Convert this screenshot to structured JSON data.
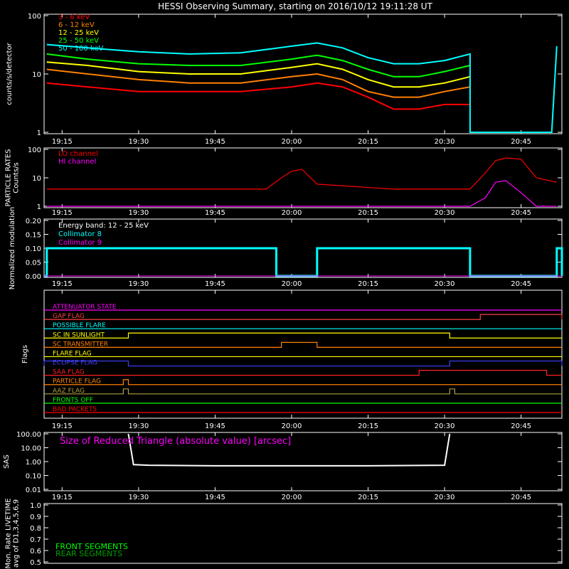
{
  "title": "HESSI Observing Summary, starting on 2016/10/12 19:11:28 UT",
  "time_axis": {
    "start": "19:11:28",
    "end": "20:53",
    "ticks": [
      "19:15",
      "19:30",
      "19:45",
      "20:00",
      "20:15",
      "20:30",
      "20:45"
    ]
  },
  "colors": {
    "3-6": "#ff0000",
    "6-12": "#ff8000",
    "12-25": "#ffff00",
    "25-50": "#00ff00",
    "50-100": "#00ffff",
    "magenta": "#ff00ff",
    "lo": "#ff0000",
    "hi": "#ff00ff",
    "white": "#ffffff",
    "green": "#00ff00",
    "dkgreen": "#00a000",
    "blue": "#0000ff",
    "olive": "#b0a040"
  },
  "chart_data": [
    {
      "type": "line",
      "ylabel": "counts/s/detector",
      "yscale": "log",
      "ylim": [
        1,
        100
      ],
      "yticks": [
        "1",
        "10",
        "100"
      ],
      "legend": [
        "3 - 6 keV",
        "6 - 12 keV",
        "12 - 25 keV",
        "25 - 50 keV",
        "50 - 100 keV"
      ],
      "x": [
        "19:12",
        "19:20",
        "19:30",
        "19:40",
        "19:50",
        "20:00",
        "20:05",
        "20:10",
        "20:15",
        "20:20",
        "20:25",
        "20:30",
        "20:35",
        "20:35",
        "20:51",
        "20:52"
      ],
      "series": [
        {
          "name": "3 - 6 keV",
          "values": [
            7,
            6,
            5,
            5,
            5,
            6,
            7,
            6,
            4,
            2.5,
            2.5,
            3,
            3,
            null,
            null,
            null
          ]
        },
        {
          "name": "6 - 12 keV",
          "values": [
            12,
            10,
            8,
            7,
            7,
            9,
            10,
            8,
            5,
            4,
            4,
            5,
            6,
            null,
            null,
            null
          ]
        },
        {
          "name": "12 - 25 keV",
          "values": [
            16,
            14,
            11,
            10,
            10,
            13,
            15,
            12,
            8,
            6,
            6,
            7,
            9,
            null,
            null,
            null
          ]
        },
        {
          "name": "25 - 50 keV",
          "values": [
            22,
            18,
            15,
            14,
            14,
            18,
            21,
            17,
            12,
            9,
            9,
            11,
            14,
            null,
            null,
            null
          ]
        },
        {
          "name": "50 - 100 keV",
          "values": [
            32,
            28,
            24,
            22,
            23,
            30,
            34,
            28,
            19,
            15,
            15,
            17,
            22,
            1,
            1,
            30
          ]
        }
      ]
    },
    {
      "type": "line",
      "ylabel": "PARTICLE RATES Counts/s",
      "yscale": "log",
      "ylim": [
        1,
        100
      ],
      "yticks": [
        "1",
        "10",
        "100"
      ],
      "legend": [
        "LO channel",
        "HI channel"
      ],
      "x": [
        "19:12",
        "19:25",
        "19:40",
        "19:55",
        "19:58",
        "20:00",
        "20:02",
        "20:05",
        "20:20",
        "20:35",
        "20:38",
        "20:40",
        "20:42",
        "20:45",
        "20:48",
        "20:52"
      ],
      "series": [
        {
          "name": "LO channel",
          "values": [
            4,
            4,
            4,
            4,
            10,
            17,
            20,
            6,
            4,
            4,
            15,
            40,
            50,
            45,
            10,
            7
          ]
        },
        {
          "name": "HI channel",
          "values": [
            1,
            1,
            1,
            1,
            1,
            1,
            1,
            1,
            1,
            1,
            2,
            7,
            8,
            3,
            1,
            1
          ]
        }
      ]
    },
    {
      "type": "line",
      "ylabel": "Normalized modulation",
      "ylim": [
        0,
        0.2
      ],
      "yticks": [
        "0.00",
        "0.05",
        "0.10",
        "0.15",
        "0.20"
      ],
      "legend_header": "Energy band: 12 - 25 keV",
      "legend": [
        "Collimator 8",
        "Collimator 9"
      ],
      "segments": [
        {
          "from": "19:12",
          "to": "19:57",
          "value": 0.1
        },
        {
          "from": "20:05",
          "to": "20:35",
          "value": 0.1
        },
        {
          "from": "20:52",
          "to": "20:53",
          "value": 0.1
        }
      ]
    },
    {
      "type": "flags",
      "ylabel": "Flags",
      "flags": [
        {
          "label": "ATTENUATOR STATE",
          "color": "#ff00ff",
          "on": []
        },
        {
          "label": "GAP FLAG",
          "color": "#ff4040",
          "on": [
            [
              "20:37",
              "20:53"
            ]
          ]
        },
        {
          "label": "POSSIBLE FLARE",
          "color": "#00ffff",
          "on": []
        },
        {
          "label": "SC IN SUNLIGHT",
          "color": "#ffff00",
          "on": [
            [
              "19:28",
              "20:31"
            ]
          ]
        },
        {
          "label": "SC TRANSMITTER",
          "color": "#ff8000",
          "on": [
            [
              "19:58",
              "20:05"
            ]
          ]
        },
        {
          "label": "FLARE FLAG",
          "color": "#ffff00",
          "on": []
        },
        {
          "label": "ECLIPSE FLAG",
          "color": "#4040ff",
          "on": [
            [
              "19:11",
              "19:28"
            ],
            [
              "20:31",
              "20:53"
            ]
          ]
        },
        {
          "label": "SAA FLAG",
          "color": "#ff2020",
          "on": [
            [
              "20:25",
              "20:50"
            ]
          ]
        },
        {
          "label": "PARTICLE FLAG",
          "color": "#ff8000",
          "on": [
            [
              "19:27",
              "19:28"
            ]
          ]
        },
        {
          "label": "AAZ FLAG",
          "color": "#b0a040",
          "on": [
            [
              "19:27",
              "19:28"
            ],
            [
              "20:31",
              "20:32"
            ]
          ]
        },
        {
          "label": "FRONTS OFF",
          "color": "#00ff00",
          "on": []
        },
        {
          "label": "BAD PACKETS",
          "color": "#ff0000",
          "on": []
        }
      ]
    },
    {
      "type": "line",
      "ylabel": "SAS",
      "yscale": "log",
      "ylim": [
        0.01,
        100
      ],
      "yticks": [
        "0.01",
        "0.10",
        "1.00",
        "10.00",
        "100.00"
      ],
      "annotation": "Size of Reduced Triangle (absolute value) [arcsec]",
      "x": [
        "19:28",
        "19:29",
        "19:32",
        "19:45",
        "20:00",
        "20:15",
        "20:30",
        "20:31"
      ],
      "values": [
        100,
        0.6,
        0.55,
        0.5,
        0.5,
        0.5,
        0.55,
        100
      ]
    },
    {
      "type": "line",
      "ylabel": "Mon. Rate LIVETIME avg of D1,3,4,5,6,9",
      "ylim": [
        0.5,
        1.0
      ],
      "yticks": [
        "0.5",
        "0.6",
        "0.7",
        "0.8",
        "0.9",
        "1.0"
      ],
      "legend": [
        "FRONT SEGMENTS",
        "REAR SEGMENTS"
      ],
      "series": []
    }
  ]
}
